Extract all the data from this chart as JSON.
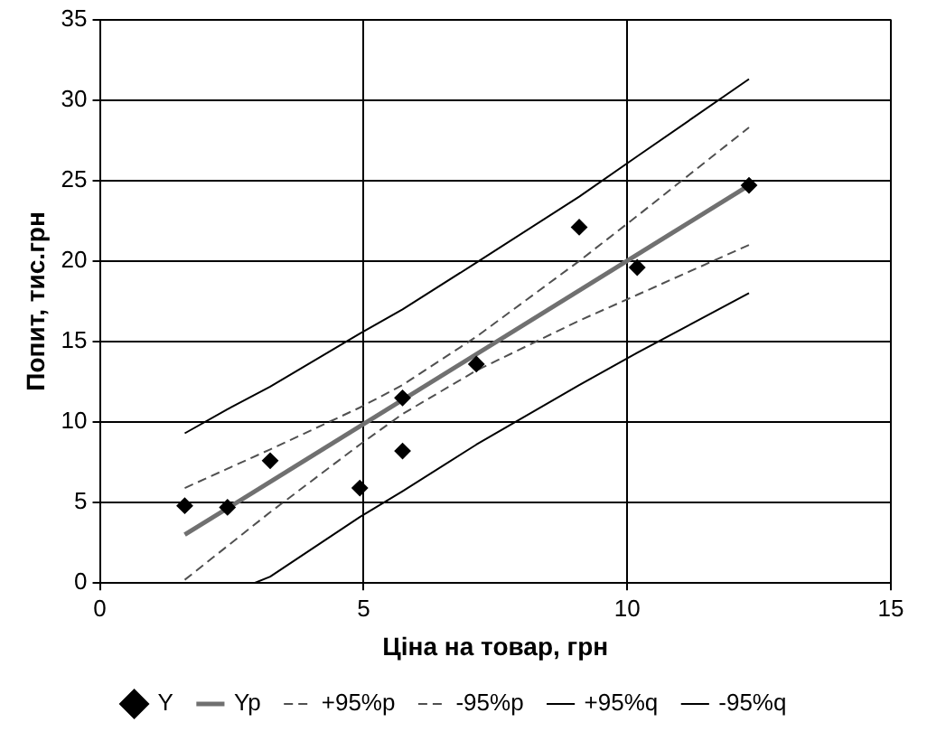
{
  "chart_data": {
    "type": "scatter",
    "xlabel": "Ціна на товар, грн",
    "ylabel": "Попит, тис.грн",
    "xlim": [
      0,
      15
    ],
    "xticks": [
      0,
      5,
      10,
      15
    ],
    "ylim": [
      0,
      35
    ],
    "yticks": [
      0,
      5,
      10,
      15,
      20,
      25,
      30,
      35
    ],
    "grid": true,
    "legend": "bottom",
    "series": [
      {
        "name": "Y",
        "marker": "diamond",
        "color": "#000000",
        "x": [
          1.61,
          2.42,
          3.23,
          4.93,
          5.74,
          5.74,
          7.14,
          9.09,
          10.19,
          12.31
        ],
        "values": [
          4.8,
          4.7,
          7.6,
          5.9,
          11.5,
          8.2,
          13.6,
          22.1,
          19.6,
          24.7
        ]
      },
      {
        "name": "Yp",
        "type": "line",
        "line_style": "solid",
        "color": "#707070",
        "x": [
          1.61,
          12.31
        ],
        "values": [
          3.0,
          24.7
        ]
      },
      {
        "name": "+95%p",
        "type": "line",
        "line_style": "dashed",
        "color": "#505050",
        "x": [
          1.61,
          2.42,
          3.23,
          4.93,
          5.74,
          7.14,
          9.09,
          10.19,
          12.31
        ],
        "values": [
          5.9,
          7.1,
          8.3,
          10.9,
          12.3,
          15.3,
          20.0,
          22.8,
          28.3
        ]
      },
      {
        "name": "-95%p",
        "type": "line",
        "line_style": "dashed",
        "color": "#505050",
        "x": [
          1.61,
          2.42,
          3.23,
          4.93,
          5.74,
          7.14,
          9.09,
          10.19,
          12.31
        ],
        "values": [
          0.2,
          2.3,
          4.4,
          8.6,
          10.5,
          13.2,
          16.3,
          17.9,
          21.0
        ]
      },
      {
        "name": "+95%q",
        "type": "line",
        "line_style": "solid",
        "color": "#000000",
        "x": [
          1.61,
          2.42,
          3.23,
          4.93,
          5.74,
          7.14,
          9.09,
          10.19,
          12.31
        ],
        "values": [
          9.3,
          10.8,
          12.2,
          15.5,
          17.0,
          19.9,
          24.0,
          26.5,
          31.3
        ]
      },
      {
        "name": "-95%q",
        "type": "line",
        "line_style": "solid",
        "color": "#000000",
        "x": [
          2.93,
          3.23,
          4.93,
          5.74,
          7.14,
          9.09,
          10.19,
          12.31
        ],
        "values": [
          0,
          0.4,
          4.1,
          5.7,
          8.6,
          12.3,
          14.3,
          18.0
        ]
      }
    ]
  }
}
